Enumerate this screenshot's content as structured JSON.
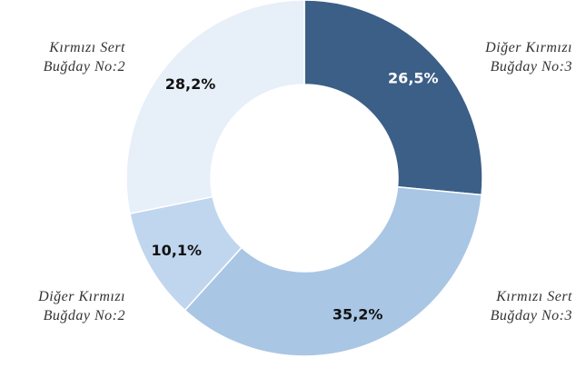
{
  "chart_data": {
    "type": "pie",
    "categories": [
      "Diğer Kırmızı\nBuğday No:3",
      "Kırmızı Sert\nBuğday No:3",
      "Diğer Kırmızı\nBuğday No:2",
      "Kırmızı Sert\nBuğday No:2"
    ],
    "values": [
      26.5,
      35.2,
      10.1,
      28.2
    ],
    "value_labels": [
      "26,5%",
      "35,2%",
      "10,1%",
      "28,2%"
    ],
    "colors": [
      "#3b5f86",
      "#a9c6e4",
      "#c0d6ee",
      "#e7eff9"
    ]
  }
}
